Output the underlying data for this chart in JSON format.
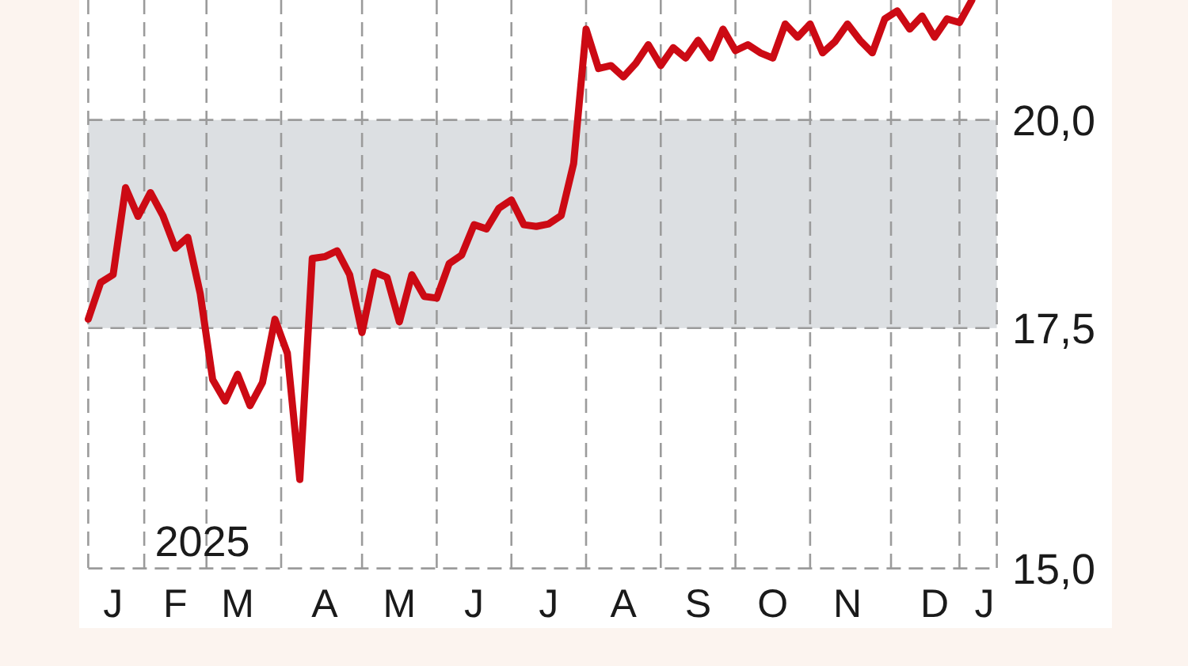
{
  "chart_data": {
    "type": "line",
    "categories": [
      null,
      null,
      "J",
      null,
      null,
      null,
      null,
      "F",
      null,
      null,
      null,
      null,
      "M",
      null,
      null,
      null,
      null,
      null,
      null,
      "A",
      null,
      null,
      null,
      null,
      null,
      "M",
      null,
      null,
      null,
      null,
      null,
      "J",
      null,
      null,
      null,
      null,
      null,
      "J",
      null,
      null,
      null,
      null,
      null,
      "A",
      null,
      null,
      null,
      null,
      null,
      "S",
      null,
      null,
      null,
      null,
      null,
      "O",
      null,
      null,
      null,
      null,
      null,
      "N",
      null,
      null,
      null,
      null,
      null,
      null,
      "D",
      null,
      null,
      null,
      "J",
      null
    ],
    "series": [
      {
        "color": "#cc0a14",
        "values": [
          17.6,
          18.02,
          18.11,
          19.15,
          18.8,
          19.09,
          18.81,
          18.42,
          18.55,
          17.89,
          16.93,
          16.7,
          16.99,
          16.65,
          16.9,
          17.6,
          17.22,
          15.88,
          18.3,
          18.32,
          18.39,
          18.11,
          17.45,
          18.14,
          18.08,
          17.57,
          18.11,
          17.86,
          17.84,
          18.24,
          18.34,
          18.7,
          18.65,
          18.9,
          19.0,
          18.7,
          18.68,
          18.71,
          18.81,
          19.45,
          21.2,
          20.67,
          20.71,
          20.56,
          20.74,
          20.99,
          20.71,
          20.95,
          20.81,
          21.05,
          20.81,
          21.2,
          20.91,
          20.99,
          20.88,
          20.81,
          21.27,
          21.09,
          21.27,
          20.88,
          21.03,
          21.27,
          21.05,
          20.88,
          21.34,
          21.45,
          21.2,
          21.38,
          21.09,
          21.34,
          21.29,
          21.6,
          null,
          null
        ]
      }
    ],
    "ylim": [
      15,
      21.6
    ],
    "yticks": [
      {
        "value": 15,
        "label": "15,0"
      },
      {
        "value": 17.5,
        "label": "17,5"
      },
      {
        "value": 20,
        "label": "20,0"
      }
    ],
    "log": true,
    "grid": true,
    "bands": [
      {
        "axis": "y",
        "from": 17.5,
        "to": 20,
        "color": "#dcdfe2"
      }
    ],
    "annotations": [
      "2025"
    ]
  }
}
